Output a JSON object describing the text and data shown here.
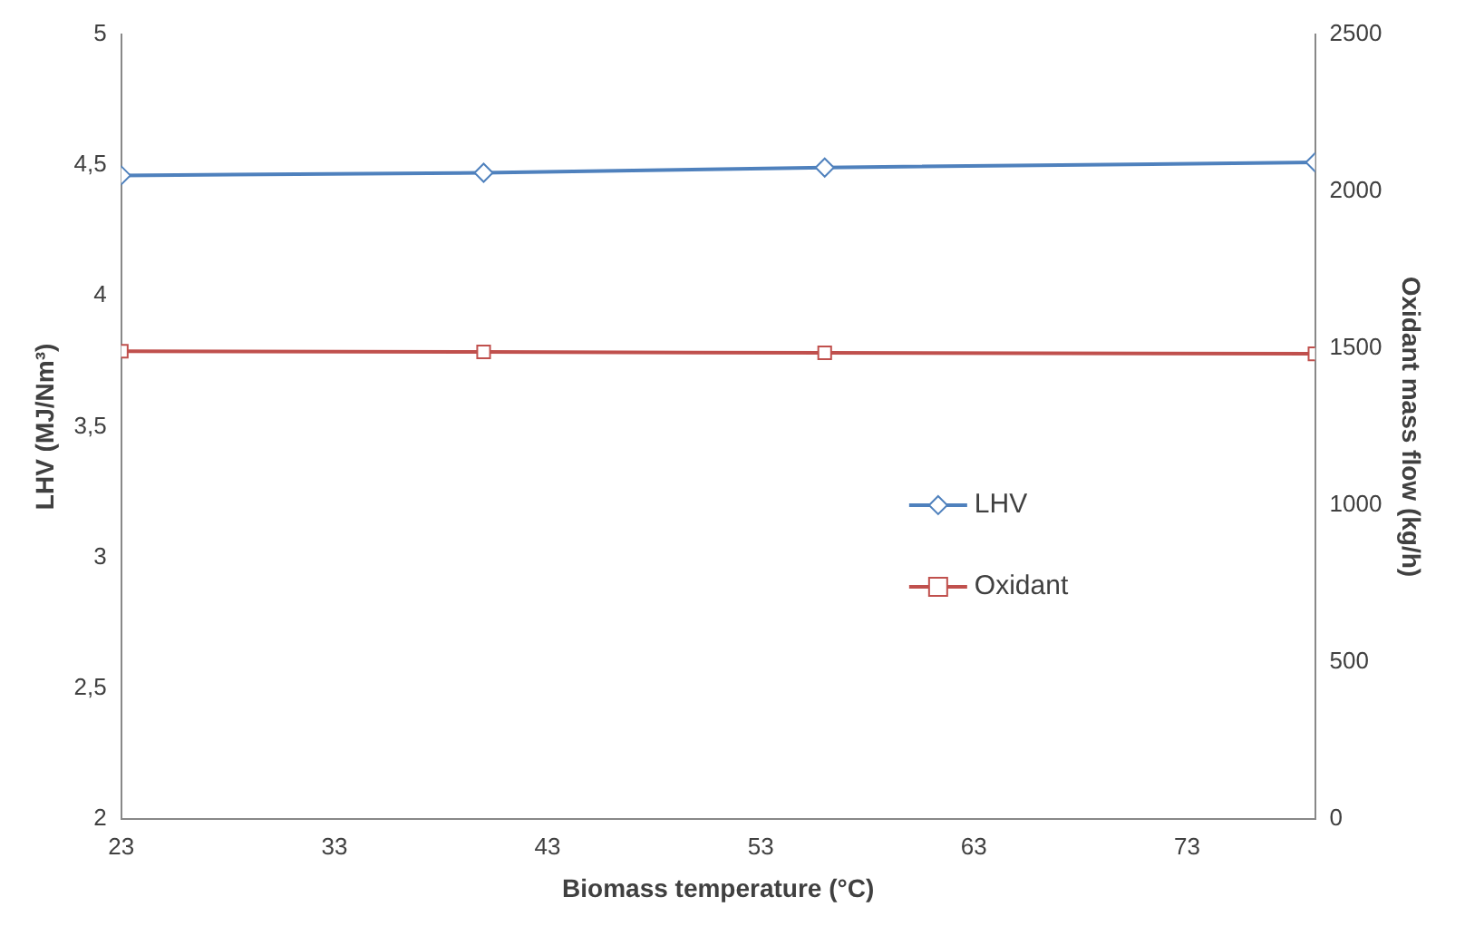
{
  "chart_data": {
    "type": "line",
    "xlabel": "Biomass temperature (°C)",
    "ylabel": "LHV (MJ/Nm³)",
    "y2label": "Oxidant mass flow (kg/h)",
    "x": [
      23,
      40,
      56,
      79
    ],
    "xlim": [
      23,
      79
    ],
    "xticks": [
      23,
      33,
      43,
      53,
      63,
      73
    ],
    "ylim": [
      2,
      5
    ],
    "yticks": [
      2,
      {
        "value": 2.5,
        "label": "2,5"
      },
      3,
      {
        "value": 3.5,
        "label": "3,5"
      },
      4,
      {
        "value": 4.5,
        "label": "4,5"
      },
      5
    ],
    "y2lim": [
      0,
      2500
    ],
    "y2ticks": [
      0,
      500,
      1000,
      1500,
      2000,
      2500
    ],
    "series": [
      {
        "name": "LHV",
        "color": "#4f81bd",
        "values": [
          4.46,
          4.47,
          4.49,
          4.51
        ],
        "marker": "diamond"
      },
      {
        "name": "Oxidant",
        "color": "#c0504d",
        "values": [
          1490,
          1488,
          1485,
          1482
        ],
        "axis": "y2",
        "marker": "square"
      }
    ],
    "grid": false,
    "legend": "right",
    "line_style": "solid"
  }
}
